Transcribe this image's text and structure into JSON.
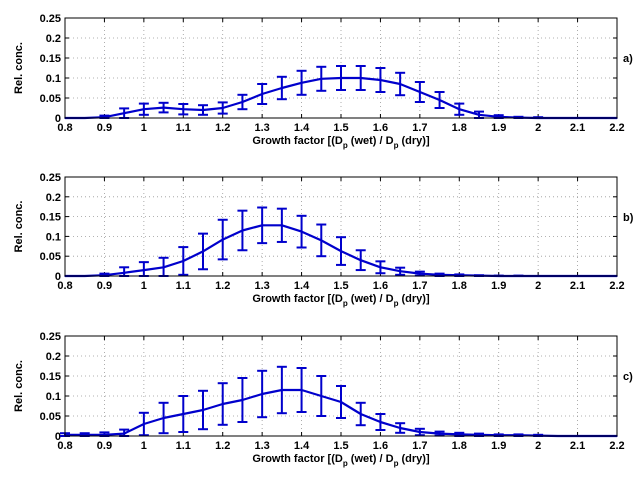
{
  "figure": {
    "panel_labels": [
      "a)",
      "b)",
      "c)"
    ],
    "xlabel": {
      "prefix": "Growth factor [(D",
      "sub1": "p",
      "middle": " (wet) / D",
      "sub2": "p",
      "suffix": " (dry)]"
    },
    "ylabel": "Rel. conc.",
    "colors": {
      "series": "#0000cc",
      "grid": "#999999",
      "axes": "#000000"
    }
  },
  "chart_data": [
    {
      "type": "line",
      "panel_label": "a)",
      "xlim": [
        0.8,
        2.2
      ],
      "ylim": [
        0,
        0.25
      ],
      "xticks": [
        "0.8",
        "0.9",
        "1",
        "1.1",
        "1.2",
        "1.3",
        "1.4",
        "1.5",
        "1.6",
        "1.7",
        "1.8",
        "1.9",
        "2",
        "2.1",
        "2.2"
      ],
      "yticks": [
        "0",
        "0.05",
        "0.1",
        "0.15",
        "0.2",
        "0.25"
      ],
      "grid": true,
      "x": [
        0.8,
        0.85,
        0.9,
        0.95,
        1.0,
        1.05,
        1.1,
        1.15,
        1.2,
        1.25,
        1.3,
        1.35,
        1.4,
        1.45,
        1.5,
        1.55,
        1.6,
        1.65,
        1.7,
        1.75,
        1.8,
        1.85,
        1.9,
        1.95,
        2.0,
        2.05,
        2.1,
        2.15,
        2.2
      ],
      "y": [
        0.0,
        0.0,
        0.002,
        0.012,
        0.022,
        0.026,
        0.022,
        0.02,
        0.025,
        0.04,
        0.06,
        0.075,
        0.088,
        0.098,
        0.1,
        0.1,
        0.095,
        0.085,
        0.065,
        0.045,
        0.022,
        0.008,
        0.003,
        0.001,
        0.0,
        0.0,
        0.0,
        0.0,
        0.0
      ],
      "err": [
        0.0,
        0.0,
        0.004,
        0.012,
        0.014,
        0.012,
        0.013,
        0.012,
        0.014,
        0.018,
        0.025,
        0.028,
        0.03,
        0.03,
        0.03,
        0.03,
        0.03,
        0.028,
        0.025,
        0.02,
        0.014,
        0.008,
        0.004,
        0.002,
        0.002,
        0.0,
        0.0,
        0.0,
        0.0
      ]
    },
    {
      "type": "line",
      "panel_label": "b)",
      "xlim": [
        0.8,
        2.2
      ],
      "ylim": [
        0,
        0.25
      ],
      "xticks": [
        "0.8",
        "0.9",
        "1",
        "1.1",
        "1.2",
        "1.3",
        "1.4",
        "1.5",
        "1.6",
        "1.7",
        "1.8",
        "1.9",
        "2",
        "2.1",
        "2.2"
      ],
      "yticks": [
        "0",
        "0.05",
        "0.1",
        "0.15",
        "0.2",
        "0.25"
      ],
      "grid": true,
      "x": [
        0.8,
        0.85,
        0.9,
        0.95,
        1.0,
        1.05,
        1.1,
        1.15,
        1.2,
        1.25,
        1.3,
        1.35,
        1.4,
        1.45,
        1.5,
        1.55,
        1.6,
        1.65,
        1.7,
        1.75,
        1.8,
        1.85,
        1.9,
        1.95,
        2.0,
        2.05,
        2.1,
        2.15,
        2.2
      ],
      "y": [
        0.0,
        0.0,
        0.002,
        0.008,
        0.015,
        0.022,
        0.038,
        0.062,
        0.092,
        0.115,
        0.128,
        0.128,
        0.112,
        0.09,
        0.063,
        0.04,
        0.022,
        0.012,
        0.006,
        0.003,
        0.002,
        0.001,
        0.0,
        0.0,
        0.0,
        0.0,
        0.0,
        0.0,
        0.0
      ],
      "err": [
        0.0,
        0.0,
        0.004,
        0.014,
        0.02,
        0.024,
        0.035,
        0.045,
        0.05,
        0.05,
        0.045,
        0.042,
        0.04,
        0.04,
        0.035,
        0.025,
        0.015,
        0.009,
        0.005,
        0.003,
        0.002,
        0.001,
        0.001,
        0.001,
        0.0,
        0.0,
        0.0,
        0.0,
        0.0
      ]
    },
    {
      "type": "line",
      "panel_label": "c)",
      "xlim": [
        0.8,
        2.2
      ],
      "ylim": [
        0,
        0.25
      ],
      "xticks": [
        "0.8",
        "0.9",
        "1",
        "1.1",
        "1.2",
        "1.3",
        "1.4",
        "1.5",
        "1.6",
        "1.7",
        "1.8",
        "1.9",
        "2",
        "2.1",
        "2.2"
      ],
      "yticks": [
        "0",
        "0.05",
        "0.1",
        "0.15",
        "0.2",
        "0.25"
      ],
      "grid": true,
      "x": [
        0.8,
        0.85,
        0.9,
        0.95,
        1.0,
        1.05,
        1.1,
        1.15,
        1.2,
        1.25,
        1.3,
        1.35,
        1.4,
        1.45,
        1.5,
        1.55,
        1.6,
        1.65,
        1.7,
        1.75,
        1.8,
        1.85,
        1.9,
        1.95,
        2.0,
        2.05,
        2.1,
        2.15,
        2.2
      ],
      "y": [
        0.003,
        0.003,
        0.003,
        0.006,
        0.03,
        0.045,
        0.055,
        0.065,
        0.08,
        0.09,
        0.105,
        0.115,
        0.115,
        0.1,
        0.085,
        0.055,
        0.035,
        0.02,
        0.01,
        0.006,
        0.004,
        0.003,
        0.002,
        0.002,
        0.001,
        0.0,
        0.0,
        0.0,
        0.0
      ],
      "err": [
        0.004,
        0.004,
        0.006,
        0.01,
        0.028,
        0.038,
        0.045,
        0.048,
        0.052,
        0.055,
        0.058,
        0.058,
        0.055,
        0.05,
        0.04,
        0.028,
        0.02,
        0.012,
        0.008,
        0.005,
        0.004,
        0.003,
        0.002,
        0.002,
        0.002,
        0.0,
        0.0,
        0.0,
        0.0
      ]
    }
  ]
}
